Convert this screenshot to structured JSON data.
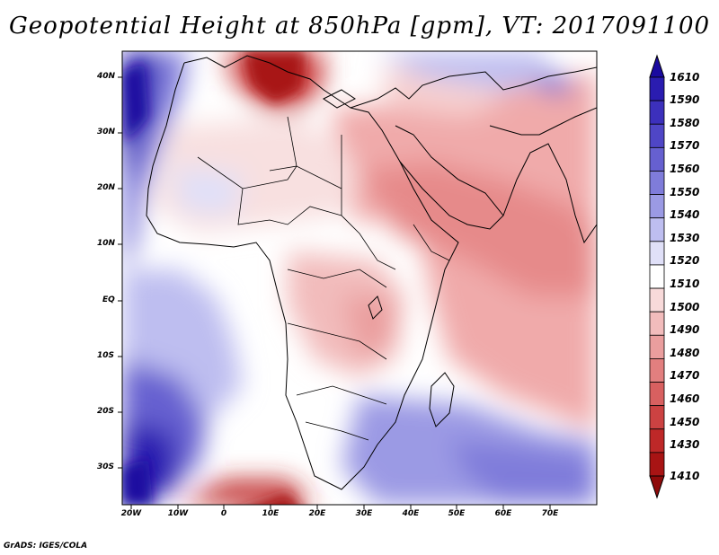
{
  "title": "Geopotential Height at 850hPa [gpm], VT: 2017091100",
  "footer": "GrADS: IGES/COLA",
  "lat_labels": [
    "40N",
    "30N",
    "20N",
    "10N",
    "EQ",
    "10S",
    "20S",
    "30S"
  ],
  "lon_labels": [
    "20W",
    "10W",
    "0",
    "10E",
    "20E",
    "30E",
    "40E",
    "50E",
    "60E",
    "70E"
  ],
  "colorbar": {
    "labels": [
      "1610",
      "1590",
      "1580",
      "1570",
      "1560",
      "1550",
      "1540",
      "1530",
      "1520",
      "1510",
      "1500",
      "1490",
      "1480",
      "1470",
      "1460",
      "1450",
      "1430",
      "1410"
    ],
    "colors": [
      "#1a0aa0",
      "#2a1cb0",
      "#3c30bc",
      "#4f46c6",
      "#6660d0",
      "#7f7cda",
      "#9b9ae4",
      "#bebef0",
      "#e0e0f8",
      "#ffffff",
      "#f8dada",
      "#f2bcbc",
      "#ea9e9e",
      "#e27f7f",
      "#d86060",
      "#cc4242",
      "#be2828",
      "#a81414",
      "#8e0a0a"
    ]
  },
  "field": {
    "variable": "Geopotential Height",
    "level": "850hPa",
    "units": "gpm",
    "valid_time": "2017091100"
  }
}
